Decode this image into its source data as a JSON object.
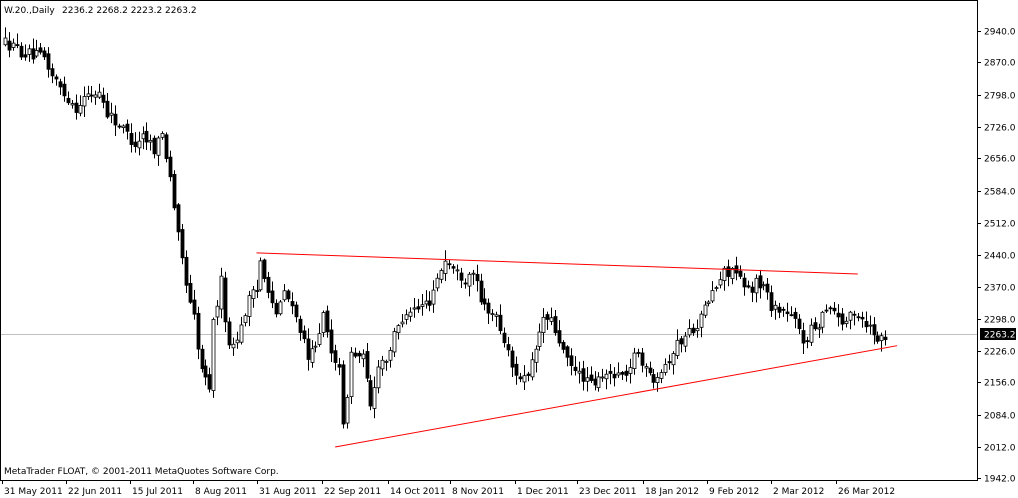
{
  "header": {
    "symbol": "W.20.,Daily",
    "ohlc": "2236.2 2268.2 2223.2 2263.2"
  },
  "copyright": "MetaTrader FLOAT, © 2001-2011 MetaQuotes Software Corp.",
  "current_price_label": "2263.2",
  "colors": {
    "background": "#ffffff",
    "candle": "#000000",
    "trendline": "#ff0000",
    "price_line": "#c0c0c0",
    "price_label_bg": "#000000",
    "price_label_text": "#ffffff"
  },
  "chart_data": {
    "type": "candlestick",
    "ylim": [
      1942.0,
      2975.0
    ],
    "y_ticks": [
      "2940.0",
      "2870.0",
      "2798.0",
      "2726.0",
      "2656.0",
      "2584.0",
      "2512.0",
      "2440.0",
      "2370.0",
      "2298.0",
      "2226.0",
      "2156.0",
      "2084.0",
      "2012.0",
      "1942.0"
    ],
    "x_ticks": [
      "31 May 2011",
      "22 Jun 2011",
      "15 Jul 2011",
      "8 Aug 2011",
      "31 Aug 2011",
      "22 Sep 2011",
      "14 Oct 2011",
      "8 Nov 2011",
      "1 Dec 2011",
      "23 Dec 2011",
      "18 Jan 2012",
      "9 Feb 2012",
      "2 Mar 2012",
      "26 Mar 2012"
    ],
    "current_price": 2263.2,
    "anchors": [
      [
        0,
        2915
      ],
      [
        5,
        2890
      ],
      [
        10,
        2880
      ],
      [
        12,
        2840
      ],
      [
        15,
        2800
      ],
      [
        18,
        2770
      ],
      [
        20,
        2790
      ],
      [
        24,
        2805
      ],
      [
        26,
        2760
      ],
      [
        30,
        2720
      ],
      [
        33,
        2690
      ],
      [
        35,
        2710
      ],
      [
        38,
        2680
      ],
      [
        40,
        2710
      ],
      [
        42,
        2620
      ],
      [
        44,
        2480
      ],
      [
        46,
        2380
      ],
      [
        48,
        2300
      ],
      [
        50,
        2180
      ],
      [
        52,
        2150
      ],
      [
        53,
        2290
      ],
      [
        55,
        2380
      ],
      [
        57,
        2230
      ],
      [
        59,
        2260
      ],
      [
        62,
        2340
      ],
      [
        64,
        2360
      ],
      [
        65,
        2430
      ],
      [
        67,
        2370
      ],
      [
        69,
        2300
      ],
      [
        71,
        2360
      ],
      [
        73,
        2320
      ],
      [
        75,
        2280
      ],
      [
        77,
        2200
      ],
      [
        79,
        2250
      ],
      [
        81,
        2300
      ],
      [
        83,
        2220
      ],
      [
        85,
        2200
      ],
      [
        86,
        2050
      ],
      [
        88,
        2220
      ],
      [
        91,
        2210
      ],
      [
        93,
        2100
      ],
      [
        95,
        2200
      ],
      [
        97,
        2210
      ],
      [
        100,
        2280
      ],
      [
        102,
        2320
      ],
      [
        105,
        2320
      ],
      [
        108,
        2340
      ],
      [
        110,
        2390
      ],
      [
        112,
        2430
      ],
      [
        115,
        2400
      ],
      [
        117,
        2390
      ],
      [
        119,
        2410
      ],
      [
        121,
        2330
      ],
      [
        123,
        2320
      ],
      [
        125,
        2300
      ],
      [
        127,
        2250
      ],
      [
        129,
        2190
      ],
      [
        131,
        2170
      ],
      [
        133,
        2160
      ],
      [
        135,
        2230
      ],
      [
        137,
        2300
      ],
      [
        139,
        2290
      ],
      [
        141,
        2250
      ],
      [
        143,
        2200
      ],
      [
        145,
        2180
      ],
      [
        147,
        2170
      ],
      [
        149,
        2150
      ],
      [
        151,
        2160
      ],
      [
        153,
        2170
      ],
      [
        155,
        2180
      ],
      [
        157,
        2170
      ],
      [
        159,
        2190
      ],
      [
        161,
        2230
      ],
      [
        163,
        2180
      ],
      [
        165,
        2170
      ],
      [
        167,
        2190
      ],
      [
        169,
        2210
      ],
      [
        171,
        2240
      ],
      [
        173,
        2260
      ],
      [
        175,
        2280
      ],
      [
        177,
        2300
      ],
      [
        179,
        2340
      ],
      [
        181,
        2370
      ],
      [
        183,
        2400
      ],
      [
        185,
        2410
      ],
      [
        187,
        2380
      ],
      [
        189,
        2360
      ],
      [
        191,
        2380
      ],
      [
        193,
        2370
      ],
      [
        195,
        2330
      ],
      [
        197,
        2320
      ],
      [
        199,
        2310
      ],
      [
        201,
        2290
      ],
      [
        203,
        2250
      ],
      [
        205,
        2270
      ],
      [
        207,
        2290
      ],
      [
        209,
        2330
      ],
      [
        211,
        2320
      ],
      [
        213,
        2290
      ],
      [
        215,
        2300
      ],
      [
        217,
        2310
      ],
      [
        219,
        2290
      ],
      [
        221,
        2270
      ],
      [
        223,
        2250
      ],
      [
        224,
        2263.2
      ]
    ],
    "trendlines": [
      {
        "name": "",
        "from": [
          64,
          2445
        ],
        "to": [
          217,
          2398
        ]
      },
      {
        "name": "",
        "from": [
          84,
          2012
        ],
        "to": [
          227,
          2238
        ]
      }
    ],
    "grid": false
  }
}
